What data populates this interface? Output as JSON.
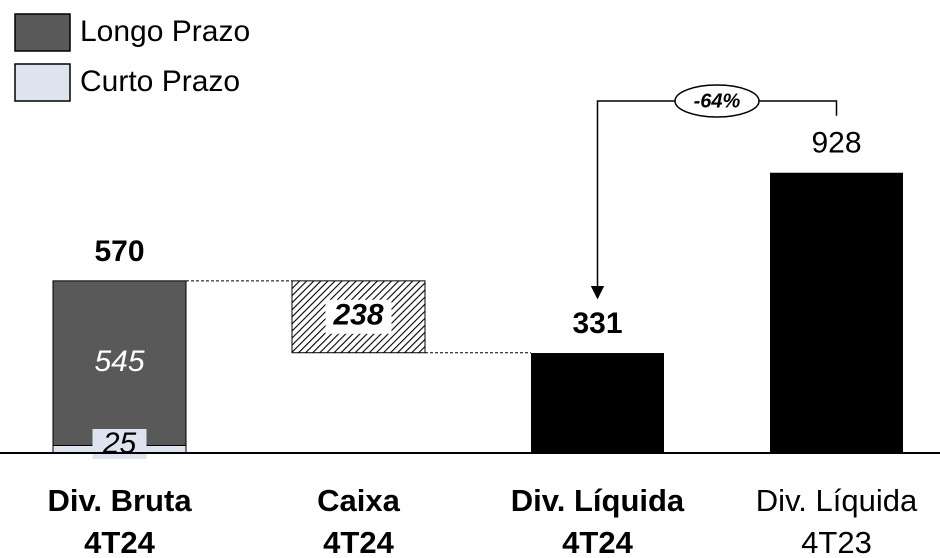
{
  "chart_data": {
    "type": "waterfall",
    "categories": [
      [
        "Div. Bruta",
        "4T24"
      ],
      [
        "Caixa",
        "4T24"
      ],
      [
        "Div. Líquida",
        "4T24"
      ],
      [
        "Div. Líquida",
        "4T23"
      ]
    ],
    "highlight": [
      true,
      true,
      true,
      false
    ],
    "series": [
      {
        "name": "Longo Prazo",
        "color": "#595959",
        "values": [
          545,
          null,
          null,
          null
        ]
      },
      {
        "name": "Curto Prazo",
        "color": "#dde4ef",
        "values": [
          25,
          null,
          null,
          null
        ]
      }
    ],
    "totals": [
      570,
      null,
      331,
      928
    ],
    "total_color": "#000000",
    "decreases": [
      null,
      238,
      null,
      null
    ],
    "annotation": {
      "text": "-64%",
      "from": 3,
      "to": 2
    },
    "ylim": [
      0,
      1000
    ]
  }
}
